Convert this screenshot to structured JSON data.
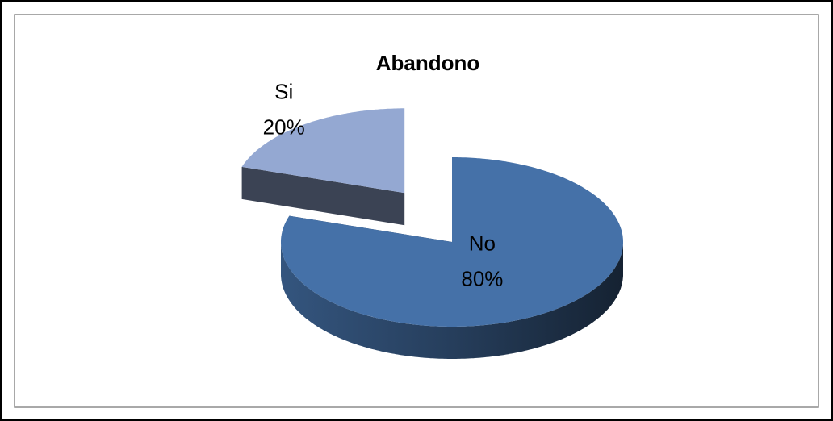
{
  "chart_data": {
    "type": "pie",
    "title": "Abandono",
    "categories": [
      "No",
      "Si"
    ],
    "values": [
      80,
      20
    ],
    "value_labels": [
      "80%",
      "20%"
    ],
    "colors": [
      "#4571a8",
      "#94a8d2"
    ]
  }
}
